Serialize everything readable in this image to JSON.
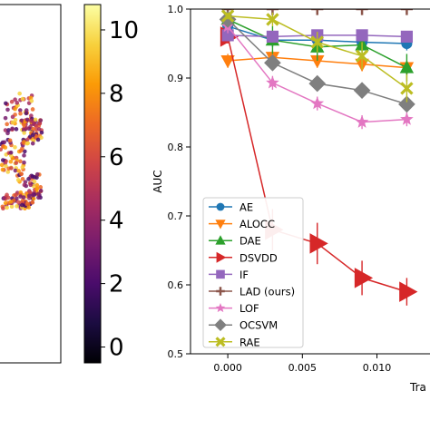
{
  "colorbar": {
    "ticks": [
      "0",
      "2",
      "4",
      "6",
      "8",
      "10"
    ],
    "range": [
      -0.5,
      10.8
    ],
    "colors": [
      "#000004",
      "#1b0c41",
      "#4a0c6b",
      "#781c6d",
      "#a52c60",
      "#cf4446",
      "#ed6925",
      "#fb9b06",
      "#f7d13d",
      "#fcffa4"
    ]
  },
  "chart_data": {
    "type": "line",
    "xlabel": "Tra",
    "ylabel": "AUC",
    "xlim": [
      -0.0025,
      0.0138
    ],
    "ylim": [
      0.5,
      1.0
    ],
    "xticks": [
      {
        "value": 0.0,
        "label": "0.000"
      },
      {
        "value": 0.005,
        "label": "0.005"
      },
      {
        "value": 0.01,
        "label": "0.010"
      }
    ],
    "yticks": [
      {
        "value": 0.5,
        "label": "0.5"
      },
      {
        "value": 0.6,
        "label": "0.6"
      },
      {
        "value": 0.7,
        "label": "0.7"
      },
      {
        "value": 0.8,
        "label": "0.8"
      },
      {
        "value": 0.9,
        "label": "0.9"
      },
      {
        "value": 1.0,
        "label": "1.0"
      }
    ],
    "legend_position": "lower-left",
    "x": [
      0.0,
      0.003,
      0.006,
      0.009,
      0.012
    ],
    "series": [
      {
        "name": "AE",
        "color": "#1f77b4",
        "marker": "circle",
        "values": [
          0.975,
          0.955,
          0.955,
          0.952,
          0.95
        ],
        "err": [
          0.005,
          0.01,
          0.01,
          0.012,
          0.01
        ]
      },
      {
        "name": "ALOCC",
        "color": "#ff7f0e",
        "marker": "triangle-down",
        "values": [
          0.925,
          0.93,
          0.925,
          0.92,
          0.915
        ],
        "err": [
          0.01,
          0.01,
          0.01,
          0.01,
          0.01
        ]
      },
      {
        "name": "DAE",
        "color": "#2ca02c",
        "marker": "triangle-up",
        "values": [
          0.985,
          0.955,
          0.945,
          0.948,
          0.915
        ],
        "err": [
          0.01,
          0.02,
          0.02,
          0.02,
          0.02
        ]
      },
      {
        "name": "DSVDD",
        "color": "#d62728",
        "marker": "triangle-right",
        "values": [
          0.96,
          0.68,
          0.66,
          0.61,
          0.59
        ],
        "err": [
          0.01,
          0.03,
          0.03,
          0.025,
          0.02
        ]
      },
      {
        "name": "IF",
        "color": "#9467bd",
        "marker": "square",
        "values": [
          0.962,
          0.96,
          0.962,
          0.962,
          0.96
        ],
        "err": [
          0.008,
          0.008,
          0.008,
          0.008,
          0.008
        ]
      },
      {
        "name": "LAD (ours)",
        "color": "#8c564b",
        "marker": "plus",
        "values": [
          1.0,
          1.0,
          1.0,
          1.0,
          1.0
        ],
        "err": [
          0.002,
          0.002,
          0.002,
          0.002,
          0.002
        ]
      },
      {
        "name": "LOF",
        "color": "#e377c2",
        "marker": "star",
        "values": [
          0.975,
          0.893,
          0.863,
          0.836,
          0.84
        ],
        "err": [
          0.01,
          0.01,
          0.01,
          0.01,
          0.01
        ]
      },
      {
        "name": "OCSVM",
        "color": "#7f7f7f",
        "marker": "diamond",
        "values": [
          0.985,
          0.922,
          0.892,
          0.882,
          0.862
        ],
        "err": [
          0.01,
          0.01,
          0.01,
          0.01,
          0.01
        ]
      },
      {
        "name": "RAE",
        "color": "#bcbd22",
        "marker": "x",
        "values": [
          0.99,
          0.985,
          0.952,
          0.932,
          0.885
        ],
        "err": [
          0.005,
          0.01,
          0.015,
          0.02,
          0.02
        ]
      }
    ]
  }
}
